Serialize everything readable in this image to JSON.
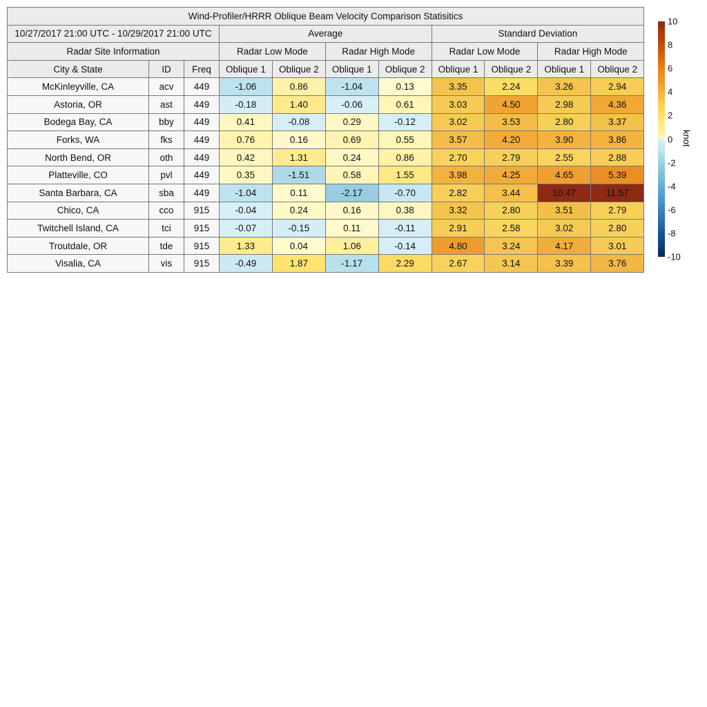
{
  "chart_data": {
    "type": "table",
    "title": "Wind-Profiler/HRRR Oblique Beam Velocity Comparison Statisitics",
    "date_range": "10/27/2017 21:00 UTC - 10/29/2017 21:00 UTC",
    "group_headers": {
      "average": "Average",
      "stddev": "Standard Deviation",
      "site_info": "Radar Site Information",
      "low": "Radar Low Mode",
      "high": "Radar High Mode"
    },
    "columns": [
      "City & State",
      "ID",
      "Freq",
      "Oblique 1",
      "Oblique 2",
      "Oblique 1",
      "Oblique 2",
      "Oblique 1",
      "Oblique 2",
      "Oblique 1",
      "Oblique 2"
    ],
    "rows": [
      {
        "city": "McKinleyville, CA",
        "id": "acv",
        "freq": "449",
        "values": [
          "-1.06",
          "0.86",
          "-1.04",
          "0.13",
          "3.35",
          "2.24",
          "3.26",
          "2.94"
        ]
      },
      {
        "city": "Astoria, OR",
        "id": "ast",
        "freq": "449",
        "values": [
          "-0.18",
          "1.40",
          "-0.06",
          "0.61",
          "3.03",
          "4.50",
          "2.98",
          "4.36"
        ]
      },
      {
        "city": "Bodega Bay, CA",
        "id": "bby",
        "freq": "449",
        "values": [
          "0.41",
          "-0.08",
          "0.29",
          "-0.12",
          "3.02",
          "3.53",
          "2.80",
          "3.37"
        ]
      },
      {
        "city": "Forks, WA",
        "id": "fks",
        "freq": "449",
        "values": [
          "0.76",
          "0.16",
          "0.69",
          "0.55",
          "3.57",
          "4.20",
          "3.90",
          "3.86"
        ]
      },
      {
        "city": "North Bend, OR",
        "id": "oth",
        "freq": "449",
        "values": [
          "0.42",
          "1.31",
          "0.24",
          "0.86",
          "2.70",
          "2.79",
          "2.55",
          "2.88"
        ]
      },
      {
        "city": "Platteville, CO",
        "id": "pvl",
        "freq": "449",
        "values": [
          "0.35",
          "-1.51",
          "0.58",
          "1.55",
          "3.98",
          "4.25",
          "4.65",
          "5.39"
        ]
      },
      {
        "city": "Santa Barbara, CA",
        "id": "sba",
        "freq": "449",
        "values": [
          "-1.04",
          "0.11",
          "-2.17",
          "-0.70",
          "2.82",
          "3.44",
          "10.47",
          "11.57"
        ]
      },
      {
        "city": "Chico, CA",
        "id": "cco",
        "freq": "915",
        "values": [
          "-0.04",
          "0.24",
          "0.16",
          "0.38",
          "3.32",
          "2.80",
          "3.51",
          "2.79"
        ]
      },
      {
        "city": "Twitchell Island, CA",
        "id": "tci",
        "freq": "915",
        "values": [
          "-0.07",
          "-0.15",
          "0.11",
          "-0.11",
          "2.91",
          "2.58",
          "3.02",
          "2.80"
        ]
      },
      {
        "city": "Troutdale, OR",
        "id": "tde",
        "freq": "915",
        "values": [
          "1.33",
          "0.04",
          "1.06",
          "-0.14",
          "4.80",
          "3.24",
          "4.17",
          "3.01"
        ]
      },
      {
        "city": "Visalia, CA",
        "id": "vis",
        "freq": "915",
        "values": [
          "-0.49",
          "1.87",
          "-1.17",
          "2.29",
          "2.67",
          "3.14",
          "3.39",
          "3.76"
        ]
      }
    ],
    "colorbar": {
      "label": "knot",
      "range": [
        -10,
        10
      ],
      "ticks": [
        "10",
        "8",
        "6",
        "4",
        "2",
        "0",
        "-2",
        "-4",
        "-6",
        "-8",
        "-10"
      ]
    }
  }
}
